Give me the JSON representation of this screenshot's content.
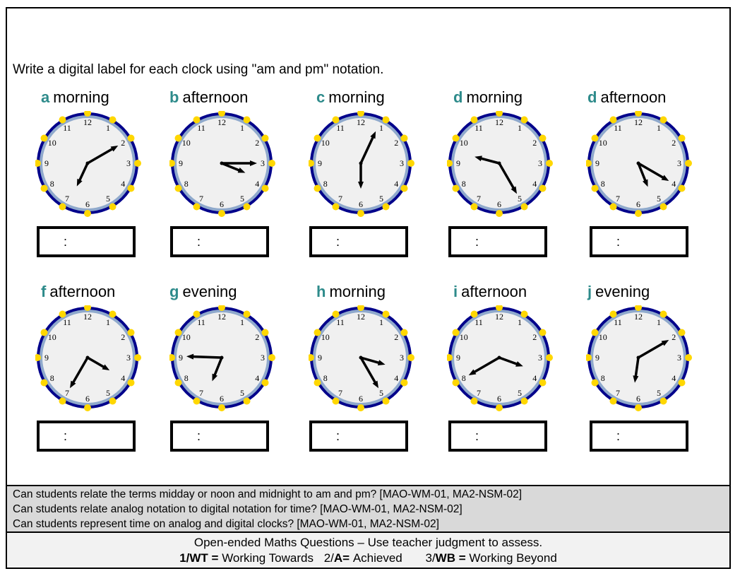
{
  "worksheet": {
    "instruction": "Write a digital label for each clock using \"am and pm\" notation.",
    "answer_placeholder": ":",
    "colors": {
      "letter": "#2e8b8b",
      "clock_rim_outer": "#00008b",
      "clock_rim_inner": "#8fa9cc",
      "clock_face": "#f0f0f0",
      "hour_markers": "#ffd700",
      "criteria_bg": "#d9d9d9",
      "footer_bg": "#f2f2f2"
    },
    "clocks": [
      {
        "letter": "a",
        "period": "morning",
        "long_hand_deg": 60,
        "short_hand_deg": 205
      },
      {
        "letter": "b",
        "period": "afternoon",
        "long_hand_deg": 90,
        "short_hand_deg": 112
      },
      {
        "letter": "c",
        "period": "morning",
        "long_hand_deg": 25,
        "short_hand_deg": 180
      },
      {
        "letter": "d",
        "period": "morning",
        "long_hand_deg": 150,
        "short_hand_deg": 285
      },
      {
        "letter": "d",
        "period": "afternoon",
        "long_hand_deg": 120,
        "short_hand_deg": 158
      },
      {
        "letter": "f",
        "period": "afternoon",
        "long_hand_deg": 210,
        "short_hand_deg": 120
      },
      {
        "letter": "g",
        "period": "evening",
        "long_hand_deg": 272,
        "short_hand_deg": 202
      },
      {
        "letter": "h",
        "period": "morning",
        "long_hand_deg": 150,
        "short_hand_deg": 106
      },
      {
        "letter": "i",
        "period": "afternoon",
        "long_hand_deg": 240,
        "short_hand_deg": 110
      },
      {
        "letter": "j",
        "period": "evening",
        "long_hand_deg": 60,
        "short_hand_deg": 188
      }
    ],
    "clock_numbers": [
      "12",
      "1",
      "2",
      "3",
      "4",
      "5",
      "6",
      "7",
      "8",
      "9",
      "10",
      "11"
    ]
  },
  "criteria": [
    "Can students relate the terms midday or noon and midnight to am and pm? [MAO-WM-01, MA2-NSM-02]",
    "Can students relate analog notation to digital notation for time? [MAO-WM-01, MA2-NSM-02]",
    "Can students represent time on analog and digital clocks? [MAO-WM-01, MA2-NSM-02]"
  ],
  "footer": {
    "line1": "Open-ended Maths Questions – Use teacher judgment to assess.",
    "scale": [
      {
        "code_num": "1/",
        "code": "WT",
        "sep": " = ",
        "label": "Working Towards"
      },
      {
        "code_num": "2/",
        "code": "A",
        "sep": "= ",
        "label": "Achieved"
      },
      {
        "code_num": "3/",
        "code": "WB",
        "sep": " = ",
        "label": "Working Beyond"
      }
    ]
  }
}
